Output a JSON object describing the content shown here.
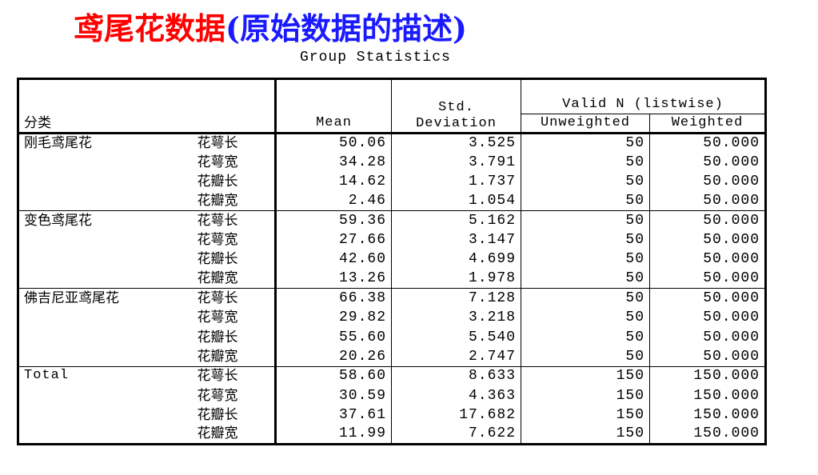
{
  "slide": {
    "title_cn": "鸢尾花数据",
    "title_paren": "(原始数据的描述)",
    "caption": "Group Statistics"
  },
  "colors": {
    "title_main": "#ff0000",
    "title_paren": "#1a1aff"
  },
  "table": {
    "headers": {
      "group": "分类",
      "mean": "Mean",
      "std_line1": "Std.",
      "std_line2": "Deviation",
      "valid_n": "Valid N (listwise)",
      "unweighted": "Unweighted",
      "weighted": "Weighted"
    },
    "groups": [
      {
        "name": "刚毛鸢尾花",
        "rows": [
          {
            "var": "花萼长",
            "mean": "50.06",
            "std": "3.525",
            "unweighted": "50",
            "weighted": "50.000"
          },
          {
            "var": "花萼宽",
            "mean": "34.28",
            "std": "3.791",
            "unweighted": "50",
            "weighted": "50.000"
          },
          {
            "var": "花瓣长",
            "mean": "14.62",
            "std": "1.737",
            "unweighted": "50",
            "weighted": "50.000"
          },
          {
            "var": "花瓣宽",
            "mean": "2.46",
            "std": "1.054",
            "unweighted": "50",
            "weighted": "50.000"
          }
        ]
      },
      {
        "name": "变色鸢尾花",
        "rows": [
          {
            "var": "花萼长",
            "mean": "59.36",
            "std": "5.162",
            "unweighted": "50",
            "weighted": "50.000"
          },
          {
            "var": "花萼宽",
            "mean": "27.66",
            "std": "3.147",
            "unweighted": "50",
            "weighted": "50.000"
          },
          {
            "var": "花瓣长",
            "mean": "42.60",
            "std": "4.699",
            "unweighted": "50",
            "weighted": "50.000"
          },
          {
            "var": "花瓣宽",
            "mean": "13.26",
            "std": "1.978",
            "unweighted": "50",
            "weighted": "50.000"
          }
        ]
      },
      {
        "name": "佛吉尼亚鸢尾花",
        "rows": [
          {
            "var": "花萼长",
            "mean": "66.38",
            "std": "7.128",
            "unweighted": "50",
            "weighted": "50.000"
          },
          {
            "var": "花萼宽",
            "mean": "29.82",
            "std": "3.218",
            "unweighted": "50",
            "weighted": "50.000"
          },
          {
            "var": "花瓣长",
            "mean": "55.60",
            "std": "5.540",
            "unweighted": "50",
            "weighted": "50.000"
          },
          {
            "var": "花瓣宽",
            "mean": "20.26",
            "std": "2.747",
            "unweighted": "50",
            "weighted": "50.000"
          }
        ]
      },
      {
        "name": "Total",
        "rows": [
          {
            "var": "花萼长",
            "mean": "58.60",
            "std": "8.633",
            "unweighted": "150",
            "weighted": "150.000"
          },
          {
            "var": "花萼宽",
            "mean": "30.59",
            "std": "4.363",
            "unweighted": "150",
            "weighted": "150.000"
          },
          {
            "var": "花瓣长",
            "mean": "37.61",
            "std": "17.682",
            "unweighted": "150",
            "weighted": "150.000"
          },
          {
            "var": "花瓣宽",
            "mean": "11.99",
            "std": "7.622",
            "unweighted": "150",
            "weighted": "150.000"
          }
        ]
      }
    ]
  }
}
